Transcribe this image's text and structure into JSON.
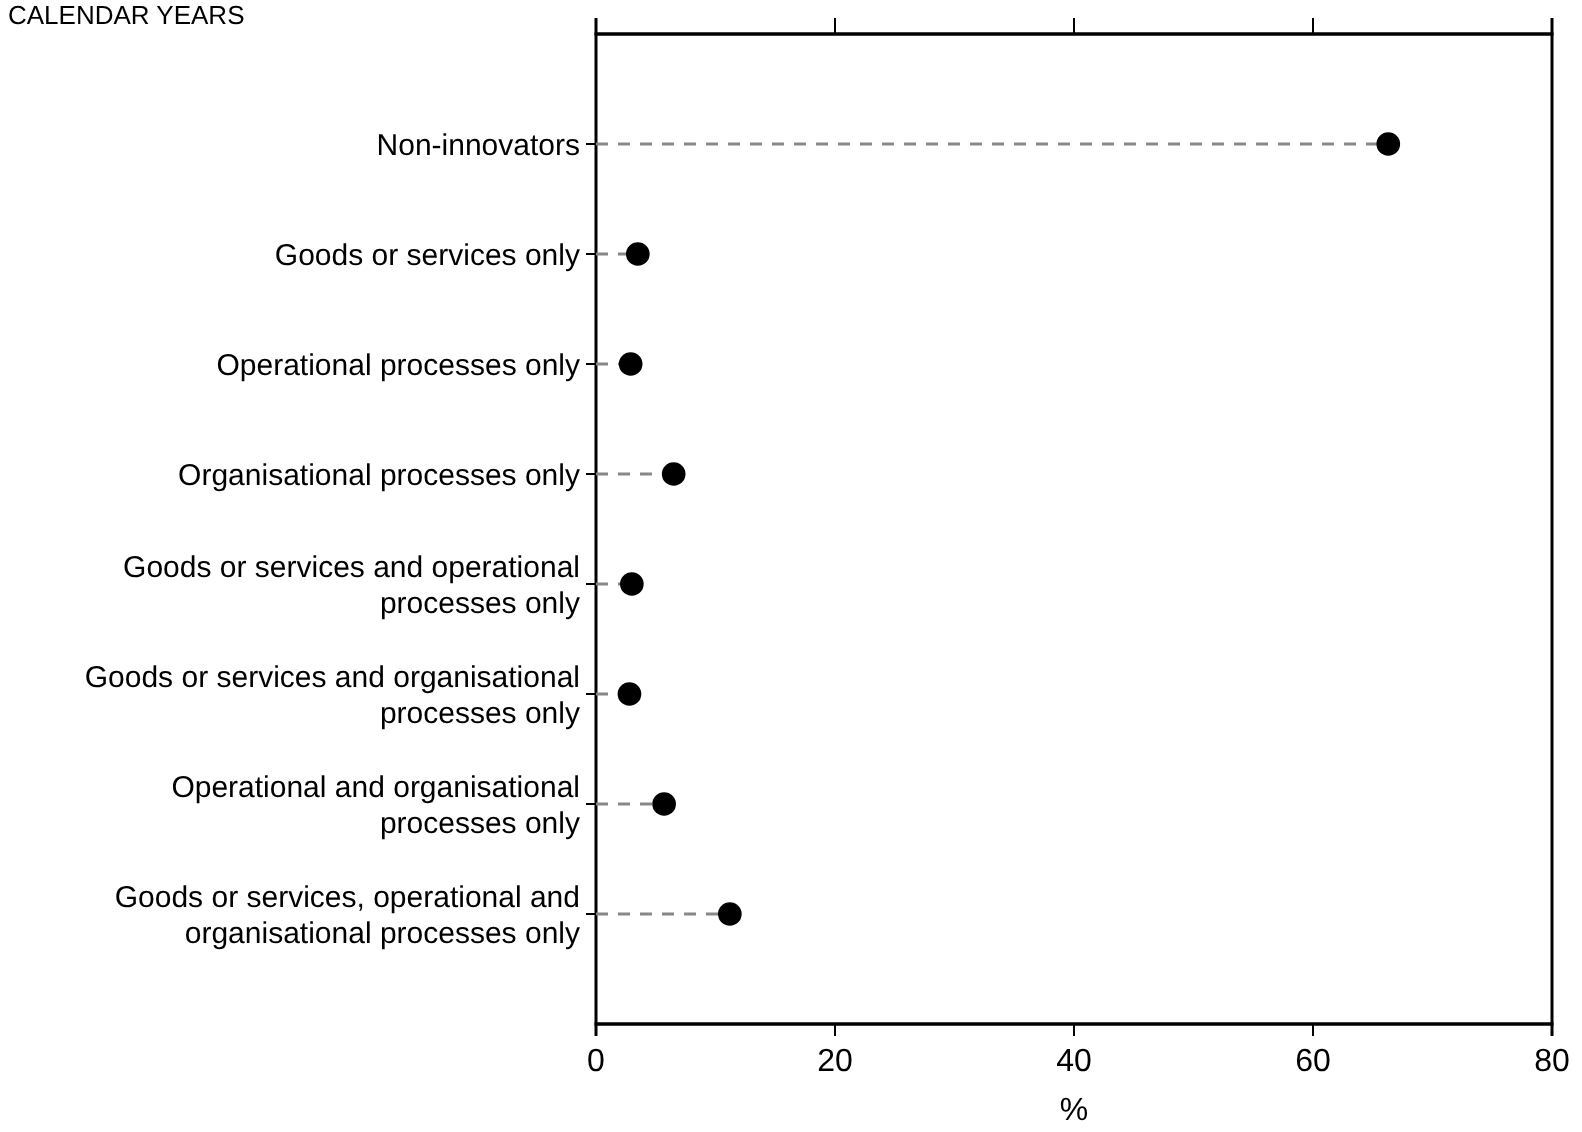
{
  "chart_data": {
    "type": "lollipop",
    "title": "CALENDAR YEARS",
    "xlabel": "%",
    "orientation": "horizontal",
    "categories": [
      "Non-innovators",
      "Goods or services only",
      "Operational processes only",
      "Organisational processes only",
      "Goods or services and operational processes only",
      "Goods or services and organisational processes only",
      "Operational and organisational processes only",
      "Goods or services, operational and organisational processes only"
    ],
    "values": [
      66.3,
      3.5,
      2.9,
      6.5,
      3,
      2.8,
      5.7,
      11.2
    ],
    "color": "#000000",
    "marker": "circle",
    "line_style": "dashed",
    "xlim": [
      0,
      80
    ],
    "xticks": [
      0,
      20,
      40,
      60,
      80
    ],
    "grid": false
  }
}
